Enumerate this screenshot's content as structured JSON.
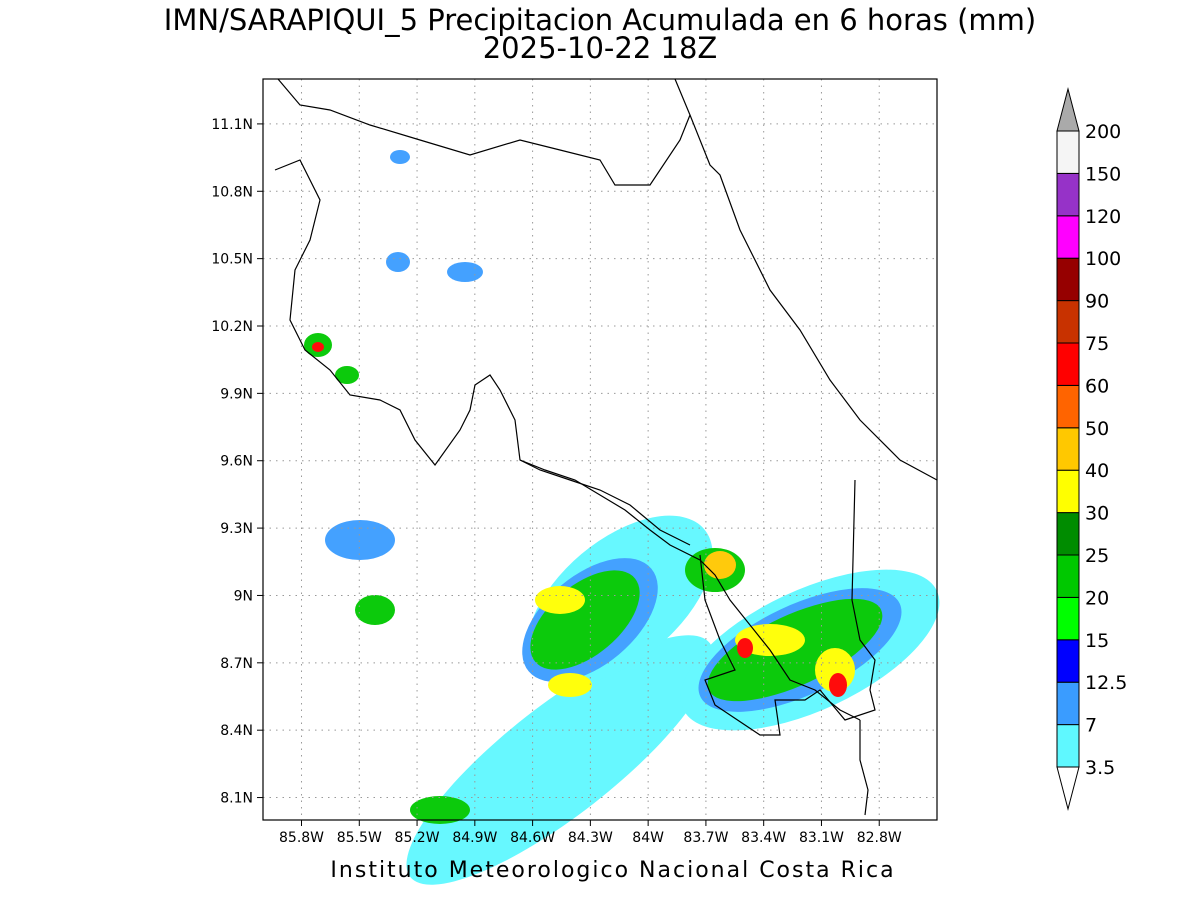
{
  "map": {
    "title": "IMN/SARAPIQUI_5 Precipitacion Acumulada en 6 horas (mm)",
    "subtitle": "2025-10-22 18Z",
    "footer": "Instituto Meteorologico Nacional Costa Rica",
    "xlim": [
      -86.0,
      -82.5
    ],
    "ylim": [
      8.0,
      11.3
    ],
    "grid": true,
    "xticks": [
      {
        "value": -85.8,
        "label": "85.8W"
      },
      {
        "value": -85.5,
        "label": "85.5W"
      },
      {
        "value": -85.2,
        "label": "85.2W"
      },
      {
        "value": -84.9,
        "label": "84.9W"
      },
      {
        "value": -84.6,
        "label": "84.6W"
      },
      {
        "value": -84.3,
        "label": "84.3W"
      },
      {
        "value": -84.0,
        "label": "84W"
      },
      {
        "value": -83.7,
        "label": "83.7W"
      },
      {
        "value": -83.4,
        "label": "83.4W"
      },
      {
        "value": -83.1,
        "label": "83.1W"
      },
      {
        "value": -82.8,
        "label": "82.8W"
      }
    ],
    "yticks": [
      {
        "value": 8.1,
        "label": "8.1N"
      },
      {
        "value": 8.4,
        "label": "8.4N"
      },
      {
        "value": 8.7,
        "label": "8.7N"
      },
      {
        "value": 9.0,
        "label": "9N"
      },
      {
        "value": 9.3,
        "label": "9.3N"
      },
      {
        "value": 9.6,
        "label": "9.6N"
      },
      {
        "value": 9.9,
        "label": "9.9N"
      },
      {
        "value": 10.2,
        "label": "10.2N"
      },
      {
        "value": 10.5,
        "label": "10.5N"
      },
      {
        "value": 10.8,
        "label": "10.8N"
      },
      {
        "value": 11.1,
        "label": "11.1N"
      }
    ],
    "colorbar": {
      "levels": [
        3.5,
        7,
        12.5,
        15,
        20,
        25,
        30,
        40,
        50,
        60,
        75,
        90,
        100,
        120,
        150,
        200
      ],
      "colors": [
        "#5ff8ff",
        "#3a9cff",
        "#0000ff",
        "#00ff00",
        "#00c800",
        "#008c00",
        "#ffff00",
        "#ffc800",
        "#ff6400",
        "#ff0000",
        "#c83200",
        "#960000",
        "#ff00ff",
        "#9632c8",
        "#f5f5f5"
      ],
      "under_color": "#ffffff",
      "over_color": "#aaaaaa"
    }
  }
}
